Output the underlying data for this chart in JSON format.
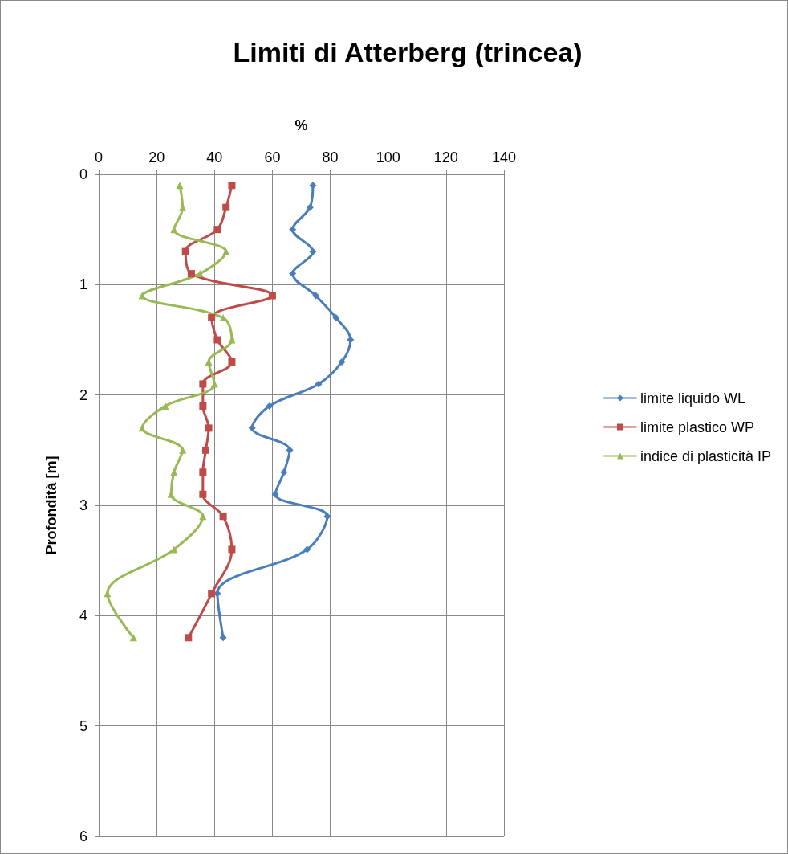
{
  "chart_data": {
    "type": "line",
    "title": "Limiti di Atterberg (trincea)",
    "xlabel": "%",
    "ylabel": "Profondità [m]",
    "series": [
      {
        "name": "limite liquido WL",
        "color": "#4a7ebb",
        "marker": "diamond",
        "x": [
          74,
          73,
          67,
          74,
          67,
          75,
          82,
          87,
          84,
          76,
          59,
          53,
          66,
          64,
          61,
          79,
          72,
          41,
          43
        ],
        "values": [
          0.1,
          0.3,
          0.5,
          0.7,
          0.9,
          1.1,
          1.3,
          1.5,
          1.7,
          1.9,
          2.1,
          2.3,
          2.5,
          2.7,
          2.9,
          3.1,
          3.4,
          3.8,
          4.2
        ]
      },
      {
        "name": "limite plastico WP",
        "color": "#be4b48",
        "marker": "square",
        "x": [
          46,
          44,
          41,
          30,
          32,
          60,
          39,
          41,
          46,
          36,
          36,
          38,
          37,
          36,
          36,
          43,
          46,
          39,
          31
        ],
        "values": [
          0.1,
          0.3,
          0.5,
          0.7,
          0.9,
          1.1,
          1.3,
          1.5,
          1.7,
          1.9,
          2.1,
          2.3,
          2.5,
          2.7,
          2.9,
          3.1,
          3.4,
          3.8,
          4.2
        ]
      },
      {
        "name": "indice di plasticità IP",
        "color": "#98b954",
        "marker": "triangle",
        "x": [
          28,
          29,
          26,
          44,
          35,
          15,
          43,
          46,
          38,
          40,
          23,
          15,
          29,
          26,
          25,
          36,
          26,
          3,
          12
        ],
        "values": [
          0.1,
          0.3,
          0.5,
          0.7,
          0.9,
          1.1,
          1.3,
          1.5,
          1.7,
          1.9,
          2.1,
          2.3,
          2.5,
          2.7,
          2.9,
          3.1,
          3.4,
          3.8,
          4.2
        ]
      }
    ],
    "xlim": [
      0,
      140
    ],
    "xticks": [
      0,
      20,
      40,
      60,
      80,
      100,
      120,
      140
    ],
    "ylim": [
      6,
      0
    ],
    "yticks": [
      0,
      1,
      2,
      3,
      4,
      5,
      6
    ],
    "grid": true,
    "legend": "right",
    "line_style": "solid"
  }
}
